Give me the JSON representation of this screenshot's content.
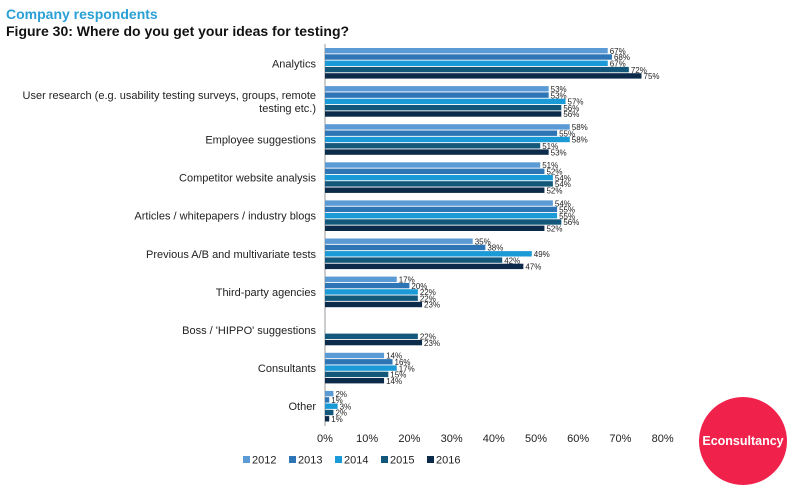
{
  "header": {
    "eyebrow": "Company respondents",
    "title": "Figure 30: Where do you get your ideas for testing?"
  },
  "brand": {
    "label": "Econsultancy",
    "color": "#f0224b"
  },
  "chart_data": {
    "type": "bar",
    "orientation": "horizontal",
    "categories": [
      [
        "Analytics"
      ],
      [
        "User research (e.g. usability testing surveys, groups, remote",
        "testing etc.)"
      ],
      [
        "Employee suggestions"
      ],
      [
        "Competitor website analysis"
      ],
      [
        "Articles / whitepapers / industry blogs"
      ],
      [
        "Previous A/B and multivariate tests"
      ],
      [
        "Third-party agencies"
      ],
      [
        "Boss / 'HIPPO' suggestions"
      ],
      [
        "Consultants"
      ],
      [
        "Other"
      ]
    ],
    "series": [
      {
        "name": "2012",
        "color": "#5b9bd5",
        "values": [
          67,
          53,
          58,
          51,
          54,
          35,
          17,
          null,
          14,
          2
        ]
      },
      {
        "name": "2013",
        "color": "#2e75b6",
        "values": [
          68,
          53,
          55,
          52,
          55,
          38,
          20,
          null,
          16,
          1
        ]
      },
      {
        "name": "2014",
        "color": "#1a9ad6",
        "values": [
          67,
          57,
          58,
          54,
          55,
          49,
          22,
          null,
          17,
          3
        ]
      },
      {
        "name": "2015",
        "color": "#13577a",
        "values": [
          72,
          56,
          51,
          54,
          56,
          42,
          22,
          22,
          15,
          2
        ]
      },
      {
        "name": "2016",
        "color": "#0c2a4a",
        "values": [
          75,
          56,
          53,
          52,
          52,
          47,
          23,
          23,
          14,
          1
        ]
      }
    ],
    "value_suffix": "%",
    "xlim": [
      0,
      80
    ],
    "xticks": [
      "0%",
      "10%",
      "20%",
      "30%",
      "40%",
      "50%",
      "60%",
      "70%",
      "80%"
    ],
    "grid": false,
    "legend_position": "bottom"
  }
}
